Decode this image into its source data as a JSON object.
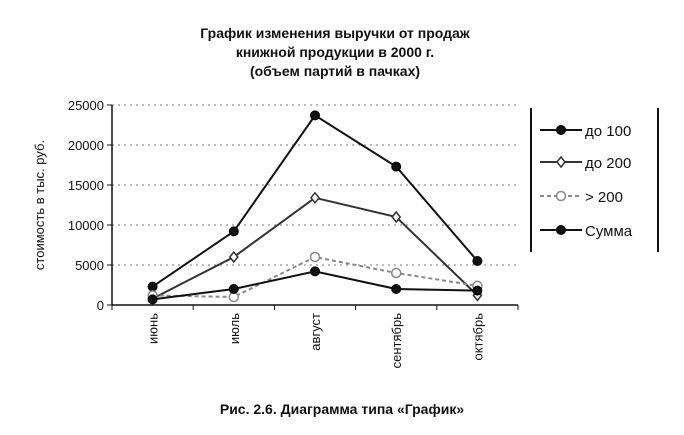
{
  "chart_data": {
    "type": "line",
    "title_lines": [
      "График изменения выручки от продаж",
      "книжной продукции в 2000 г.",
      "(объем партий в пачках)"
    ],
    "xlabel": "",
    "ylabel": "стоимость в тыс. руб.",
    "categories": [
      "июнь",
      "июль",
      "август",
      "сентябрь",
      "октябрь"
    ],
    "ylim": [
      0,
      25000
    ],
    "yticks": [
      "0",
      "5000",
      "10000",
      "15000",
      "20000",
      "25000"
    ],
    "grid": "horizontal-dotted",
    "legend_position": "right",
    "series": [
      {
        "name": "до 100",
        "values": [
          2300,
          9200,
          23700,
          17300,
          5500
        ],
        "color": "#111111",
        "marker": "circle",
        "dash": ""
      },
      {
        "name": "до 200",
        "values": [
          800,
          6000,
          13400,
          11000,
          1200
        ],
        "color": "#333333",
        "marker": "diamond",
        "dash": ""
      },
      {
        "name": "> 200",
        "values": [
          1200,
          1000,
          6000,
          4000,
          2400
        ],
        "color": "#888888",
        "marker": "open-circle",
        "dash": "4,3"
      },
      {
        "name": "Сумма",
        "values": [
          700,
          2000,
          4200,
          2000,
          1800
        ],
        "color": "#111111",
        "marker": "circle",
        "dash": ""
      }
    ]
  },
  "caption": "Рис. 2.6. Диаграмма типа «График»"
}
